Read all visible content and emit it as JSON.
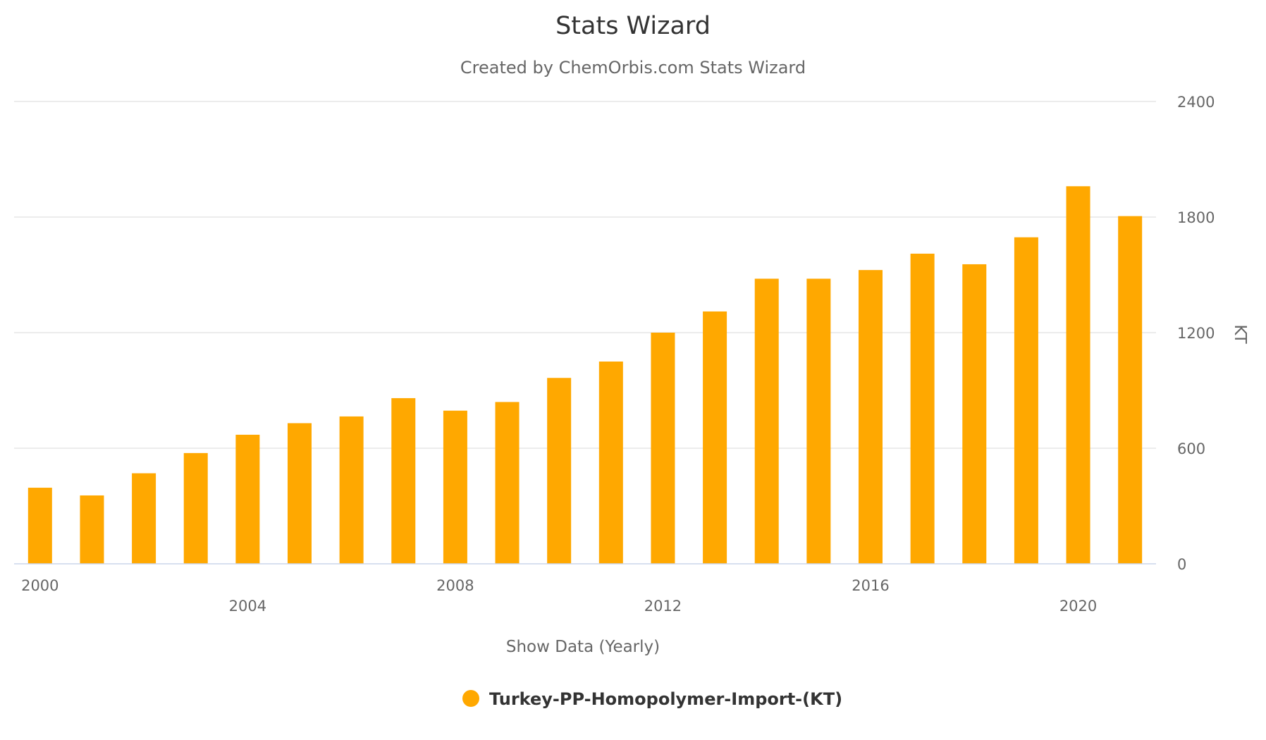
{
  "chart_data": {
    "type": "bar",
    "title": "Stats Wizard",
    "subtitle": "Created by ChemOrbis.com Stats Wizard",
    "xlabel": "Show Data (Yearly)",
    "ylabel": "KT",
    "ylim": [
      0,
      2400
    ],
    "yticks": [
      0,
      600,
      1200,
      1800,
      2400
    ],
    "xtick_labels": [
      "2000",
      "2004",
      "2008",
      "2012",
      "2016",
      "2020"
    ],
    "categories": [
      2000,
      2001,
      2002,
      2003,
      2004,
      2005,
      2006,
      2007,
      2008,
      2009,
      2010,
      2011,
      2012,
      2013,
      2014,
      2015,
      2016,
      2017,
      2018,
      2019,
      2020,
      2021
    ],
    "series": [
      {
        "name": "Turkey-PP-Homopolymer-Import-(KT)",
        "color": "#FFA800",
        "values": [
          395,
          355,
          470,
          575,
          670,
          730,
          765,
          860,
          795,
          840,
          965,
          1050,
          1200,
          1310,
          1480,
          1480,
          1525,
          1610,
          1555,
          1695,
          1960,
          1805
        ]
      }
    ],
    "grid": true,
    "yaxis_position": "right",
    "legend_position": "bottom-center"
  }
}
